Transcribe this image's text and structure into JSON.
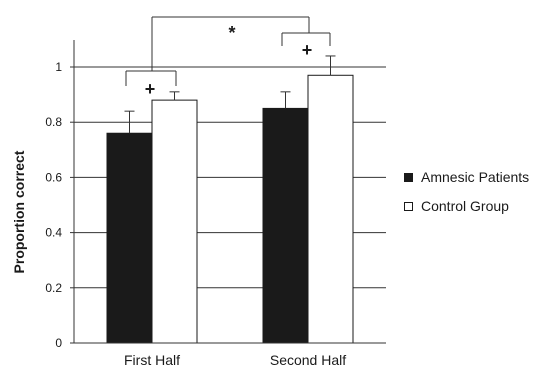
{
  "chart_data": {
    "type": "bar",
    "categories": [
      "First Half",
      "Second Half"
    ],
    "series": [
      {
        "name": "Amnesic Patients",
        "values": [
          0.76,
          0.85
        ],
        "errors": [
          0.08,
          0.06
        ],
        "color": "#1a1a1a"
      },
      {
        "name": "Control Group",
        "values": [
          0.88,
          0.97
        ],
        "errors": [
          0.03,
          0.07
        ],
        "color": "#ffffff"
      }
    ],
    "title": "",
    "xlabel": "",
    "ylabel": "Proportion correct",
    "ylim": [
      0,
      1
    ],
    "yticks": [
      "0",
      "0.2",
      "0.4",
      "0.6",
      "0.8",
      "1"
    ],
    "grid": true,
    "legend_position": "right",
    "annotations": {
      "within_first_half": "+",
      "within_second_half": "+",
      "between_halves": "*"
    }
  }
}
